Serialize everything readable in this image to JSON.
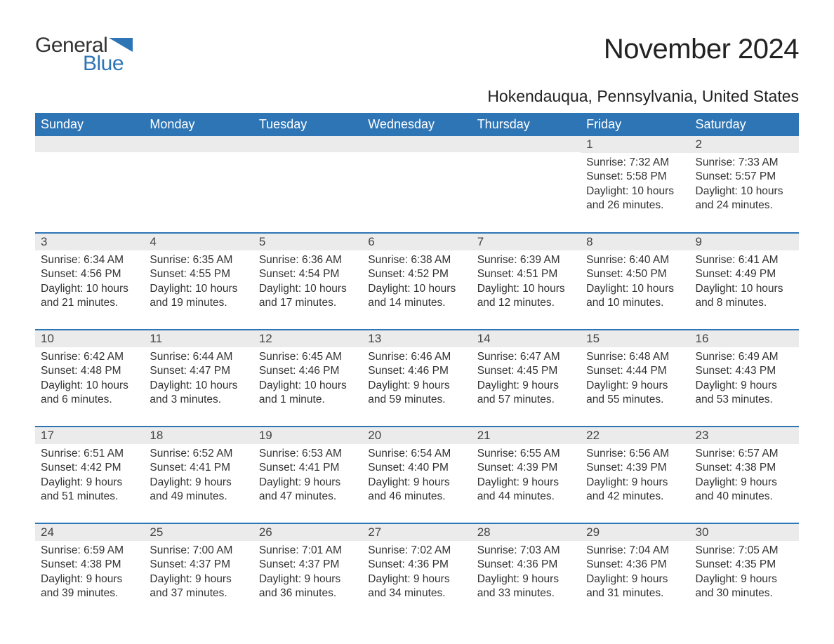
{
  "brand": {
    "word1": "General",
    "word2": "Blue",
    "accent_color": "#2e75b6"
  },
  "title": "November 2024",
  "location": "Hokendauqua, Pennsylvania, United States",
  "colors": {
    "header_bg": "#2e75b6",
    "header_text": "#ffffff",
    "daynum_bg": "#ebebeb",
    "row_border": "#2e75b6",
    "body_text": "#333333",
    "background": "#ffffff"
  },
  "typography": {
    "title_fontsize": 40,
    "location_fontsize": 23,
    "header_fontsize": 18,
    "daynum_fontsize": 17,
    "body_fontsize": 15.5
  },
  "weekdays": [
    "Sunday",
    "Monday",
    "Tuesday",
    "Wednesday",
    "Thursday",
    "Friday",
    "Saturday"
  ],
  "weeks": [
    [
      {
        "empty": true
      },
      {
        "empty": true
      },
      {
        "empty": true
      },
      {
        "empty": true
      },
      {
        "empty": true
      },
      {
        "day": "1",
        "sunrise": "Sunrise: 7:32 AM",
        "sunset": "Sunset: 5:58 PM",
        "daylight1": "Daylight: 10 hours",
        "daylight2": "and 26 minutes."
      },
      {
        "day": "2",
        "sunrise": "Sunrise: 7:33 AM",
        "sunset": "Sunset: 5:57 PM",
        "daylight1": "Daylight: 10 hours",
        "daylight2": "and 24 minutes."
      }
    ],
    [
      {
        "day": "3",
        "sunrise": "Sunrise: 6:34 AM",
        "sunset": "Sunset: 4:56 PM",
        "daylight1": "Daylight: 10 hours",
        "daylight2": "and 21 minutes."
      },
      {
        "day": "4",
        "sunrise": "Sunrise: 6:35 AM",
        "sunset": "Sunset: 4:55 PM",
        "daylight1": "Daylight: 10 hours",
        "daylight2": "and 19 minutes."
      },
      {
        "day": "5",
        "sunrise": "Sunrise: 6:36 AM",
        "sunset": "Sunset: 4:54 PM",
        "daylight1": "Daylight: 10 hours",
        "daylight2": "and 17 minutes."
      },
      {
        "day": "6",
        "sunrise": "Sunrise: 6:38 AM",
        "sunset": "Sunset: 4:52 PM",
        "daylight1": "Daylight: 10 hours",
        "daylight2": "and 14 minutes."
      },
      {
        "day": "7",
        "sunrise": "Sunrise: 6:39 AM",
        "sunset": "Sunset: 4:51 PM",
        "daylight1": "Daylight: 10 hours",
        "daylight2": "and 12 minutes."
      },
      {
        "day": "8",
        "sunrise": "Sunrise: 6:40 AM",
        "sunset": "Sunset: 4:50 PM",
        "daylight1": "Daylight: 10 hours",
        "daylight2": "and 10 minutes."
      },
      {
        "day": "9",
        "sunrise": "Sunrise: 6:41 AM",
        "sunset": "Sunset: 4:49 PM",
        "daylight1": "Daylight: 10 hours",
        "daylight2": "and 8 minutes."
      }
    ],
    [
      {
        "day": "10",
        "sunrise": "Sunrise: 6:42 AM",
        "sunset": "Sunset: 4:48 PM",
        "daylight1": "Daylight: 10 hours",
        "daylight2": "and 6 minutes."
      },
      {
        "day": "11",
        "sunrise": "Sunrise: 6:44 AM",
        "sunset": "Sunset: 4:47 PM",
        "daylight1": "Daylight: 10 hours",
        "daylight2": "and 3 minutes."
      },
      {
        "day": "12",
        "sunrise": "Sunrise: 6:45 AM",
        "sunset": "Sunset: 4:46 PM",
        "daylight1": "Daylight: 10 hours",
        "daylight2": "and 1 minute."
      },
      {
        "day": "13",
        "sunrise": "Sunrise: 6:46 AM",
        "sunset": "Sunset: 4:46 PM",
        "daylight1": "Daylight: 9 hours",
        "daylight2": "and 59 minutes."
      },
      {
        "day": "14",
        "sunrise": "Sunrise: 6:47 AM",
        "sunset": "Sunset: 4:45 PM",
        "daylight1": "Daylight: 9 hours",
        "daylight2": "and 57 minutes."
      },
      {
        "day": "15",
        "sunrise": "Sunrise: 6:48 AM",
        "sunset": "Sunset: 4:44 PM",
        "daylight1": "Daylight: 9 hours",
        "daylight2": "and 55 minutes."
      },
      {
        "day": "16",
        "sunrise": "Sunrise: 6:49 AM",
        "sunset": "Sunset: 4:43 PM",
        "daylight1": "Daylight: 9 hours",
        "daylight2": "and 53 minutes."
      }
    ],
    [
      {
        "day": "17",
        "sunrise": "Sunrise: 6:51 AM",
        "sunset": "Sunset: 4:42 PM",
        "daylight1": "Daylight: 9 hours",
        "daylight2": "and 51 minutes."
      },
      {
        "day": "18",
        "sunrise": "Sunrise: 6:52 AM",
        "sunset": "Sunset: 4:41 PM",
        "daylight1": "Daylight: 9 hours",
        "daylight2": "and 49 minutes."
      },
      {
        "day": "19",
        "sunrise": "Sunrise: 6:53 AM",
        "sunset": "Sunset: 4:41 PM",
        "daylight1": "Daylight: 9 hours",
        "daylight2": "and 47 minutes."
      },
      {
        "day": "20",
        "sunrise": "Sunrise: 6:54 AM",
        "sunset": "Sunset: 4:40 PM",
        "daylight1": "Daylight: 9 hours",
        "daylight2": "and 46 minutes."
      },
      {
        "day": "21",
        "sunrise": "Sunrise: 6:55 AM",
        "sunset": "Sunset: 4:39 PM",
        "daylight1": "Daylight: 9 hours",
        "daylight2": "and 44 minutes."
      },
      {
        "day": "22",
        "sunrise": "Sunrise: 6:56 AM",
        "sunset": "Sunset: 4:39 PM",
        "daylight1": "Daylight: 9 hours",
        "daylight2": "and 42 minutes."
      },
      {
        "day": "23",
        "sunrise": "Sunrise: 6:57 AM",
        "sunset": "Sunset: 4:38 PM",
        "daylight1": "Daylight: 9 hours",
        "daylight2": "and 40 minutes."
      }
    ],
    [
      {
        "day": "24",
        "sunrise": "Sunrise: 6:59 AM",
        "sunset": "Sunset: 4:38 PM",
        "daylight1": "Daylight: 9 hours",
        "daylight2": "and 39 minutes."
      },
      {
        "day": "25",
        "sunrise": "Sunrise: 7:00 AM",
        "sunset": "Sunset: 4:37 PM",
        "daylight1": "Daylight: 9 hours",
        "daylight2": "and 37 minutes."
      },
      {
        "day": "26",
        "sunrise": "Sunrise: 7:01 AM",
        "sunset": "Sunset: 4:37 PM",
        "daylight1": "Daylight: 9 hours",
        "daylight2": "and 36 minutes."
      },
      {
        "day": "27",
        "sunrise": "Sunrise: 7:02 AM",
        "sunset": "Sunset: 4:36 PM",
        "daylight1": "Daylight: 9 hours",
        "daylight2": "and 34 minutes."
      },
      {
        "day": "28",
        "sunrise": "Sunrise: 7:03 AM",
        "sunset": "Sunset: 4:36 PM",
        "daylight1": "Daylight: 9 hours",
        "daylight2": "and 33 minutes."
      },
      {
        "day": "29",
        "sunrise": "Sunrise: 7:04 AM",
        "sunset": "Sunset: 4:36 PM",
        "daylight1": "Daylight: 9 hours",
        "daylight2": "and 31 minutes."
      },
      {
        "day": "30",
        "sunrise": "Sunrise: 7:05 AM",
        "sunset": "Sunset: 4:35 PM",
        "daylight1": "Daylight: 9 hours",
        "daylight2": "and 30 minutes."
      }
    ]
  ]
}
